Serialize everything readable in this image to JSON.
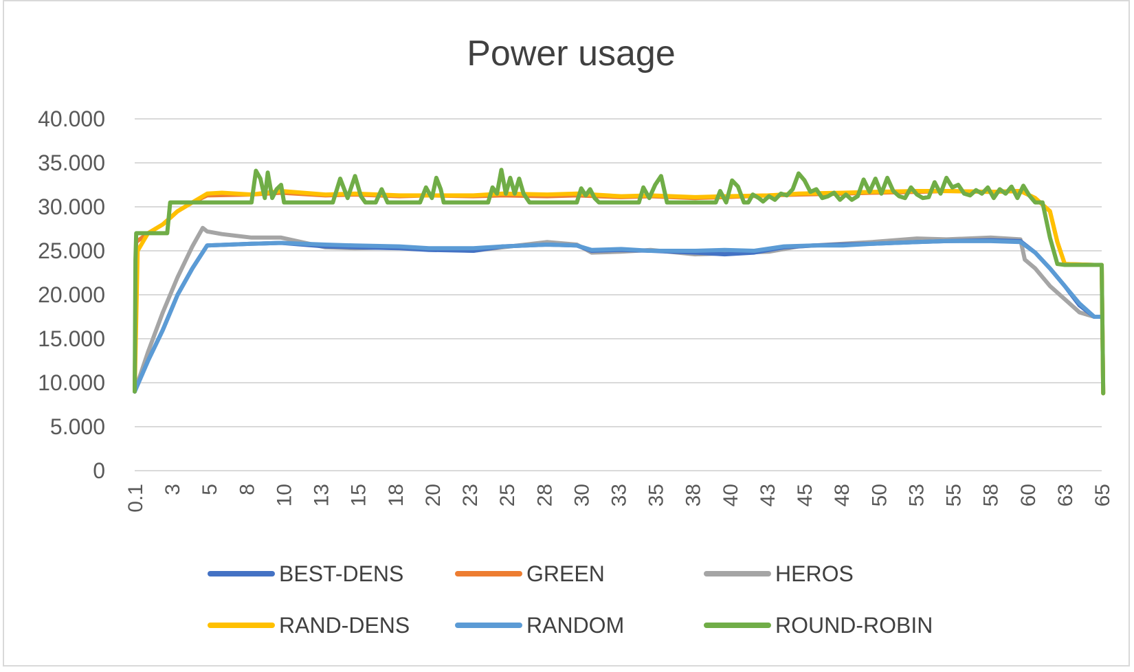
{
  "chart_data": {
    "type": "line",
    "title": "Power usage",
    "xlabel": "",
    "ylabel": "",
    "ylim": [
      0,
      40000
    ],
    "xlim": [
      0.1,
      65.5
    ],
    "y_ticks": [
      "40.000",
      "35.000",
      "30.000",
      "25.000",
      "20.000",
      "15.000",
      "10.000",
      "5.000",
      "0"
    ],
    "y_tick_values": [
      40000,
      35000,
      30000,
      25000,
      20000,
      15000,
      10000,
      5000,
      0
    ],
    "x_ticks": [
      "0.1",
      "3",
      "5",
      "8",
      "10",
      "13",
      "15",
      "18",
      "20",
      "23",
      "25",
      "28",
      "30",
      "33",
      "35",
      "38",
      "40",
      "43",
      "45",
      "48",
      "50",
      "53",
      "55",
      "58",
      "60",
      "63",
      "65"
    ],
    "grid": true,
    "legend_position": "bottom",
    "series": [
      {
        "name": "BEST-DENS",
        "color": "#4472c4",
        "x": [
          0.1,
          1,
          2,
          3,
          4,
          5,
          8,
          10,
          13,
          15,
          18,
          20,
          23,
          25,
          28,
          30,
          31,
          33,
          35,
          38,
          40,
          42,
          44,
          46,
          48,
          50,
          53,
          55,
          58,
          60,
          61,
          62,
          63,
          64,
          65,
          65.5
        ],
        "y": [
          9000,
          12500,
          16000,
          20000,
          23000,
          25600,
          25800,
          25900,
          25500,
          25400,
          25300,
          25100,
          25000,
          25500,
          25700,
          25600,
          25000,
          25100,
          25000,
          24800,
          24600,
          24800,
          25400,
          25600,
          25700,
          25800,
          26000,
          26100,
          26200,
          26100,
          24800,
          23000,
          21000,
          18800,
          17500,
          17500
        ]
      },
      {
        "name": "GREEN",
        "color": "#ed7d31",
        "x": [
          0.1,
          0.2,
          1,
          2,
          3,
          4,
          5,
          8,
          10,
          13,
          15,
          18,
          20,
          23,
          25,
          28,
          30,
          33,
          35,
          38,
          40,
          43,
          45,
          48,
          50,
          53,
          55,
          58,
          60,
          61,
          62,
          62.5,
          63,
          65,
          65.5,
          65.6
        ],
        "y": [
          9000,
          26000,
          27000,
          28000,
          29500,
          30500,
          31300,
          31400,
          31600,
          31300,
          31400,
          31200,
          31300,
          31200,
          31300,
          31200,
          31300,
          31100,
          31200,
          31000,
          31100,
          31300,
          31400,
          31500,
          31600,
          31700,
          31800,
          31700,
          31800,
          31000,
          29500,
          26000,
          23500,
          23400,
          23400,
          8800
        ]
      },
      {
        "name": "HEROS",
        "color": "#a5a5a5",
        "x": [
          0.1,
          1,
          2,
          3,
          4,
          4.7,
          5,
          6,
          8,
          10,
          13,
          15,
          18,
          20,
          23,
          25,
          28,
          30,
          31,
          33,
          35,
          38,
          40,
          43,
          45,
          48,
          50,
          53,
          55,
          58,
          60,
          60.3,
          61,
          62,
          63,
          64,
          65,
          65.5
        ],
        "y": [
          9000,
          13500,
          18000,
          22000,
          25500,
          27600,
          27200,
          26900,
          26500,
          26500,
          25400,
          25300,
          25400,
          25200,
          25000,
          25400,
          26000,
          25700,
          24800,
          24900,
          25100,
          24600,
          24700,
          24900,
          25500,
          25800,
          26000,
          26400,
          26300,
          26500,
          26300,
          24000,
          23000,
          21000,
          19500,
          18000,
          17500,
          17500
        ]
      },
      {
        "name": "RAND-DENS",
        "color": "#ffc000",
        "x": [
          0.1,
          0.3,
          1,
          2,
          3,
          4,
          5,
          6,
          8,
          10,
          13,
          15,
          18,
          20,
          23,
          25,
          28,
          30,
          33,
          35,
          38,
          40,
          43,
          45,
          48,
          50,
          53,
          55,
          58,
          60,
          61,
          62,
          62.5,
          63,
          65,
          65.5,
          65.6
        ],
        "y": [
          9000,
          25000,
          27000,
          28000,
          29500,
          30500,
          31500,
          31600,
          31400,
          31800,
          31400,
          31500,
          31300,
          31300,
          31300,
          31500,
          31400,
          31500,
          31200,
          31300,
          31100,
          31200,
          31300,
          31500,
          31600,
          31700,
          31800,
          31800,
          31700,
          31800,
          31000,
          29500,
          26000,
          23500,
          23400,
          23400,
          8800
        ]
      },
      {
        "name": "RANDOM",
        "color": "#5b9bd5",
        "x": [
          0.1,
          1,
          2,
          3,
          4,
          5,
          8,
          10,
          13,
          15,
          18,
          20,
          23,
          25,
          28,
          30,
          31,
          33,
          35,
          38,
          40,
          42,
          44,
          46,
          48,
          50,
          53,
          55,
          58,
          60,
          61,
          62,
          63,
          64,
          65,
          65.5
        ],
        "y": [
          9000,
          12500,
          16000,
          20000,
          23000,
          25600,
          25800,
          25900,
          25700,
          25600,
          25500,
          25300,
          25300,
          25500,
          25700,
          25600,
          25100,
          25200,
          25000,
          25000,
          25100,
          25000,
          25500,
          25600,
          25600,
          25800,
          26000,
          26100,
          26100,
          26000,
          24800,
          23000,
          21000,
          19000,
          17500,
          17500
        ]
      },
      {
        "name": "ROUND-ROBIN",
        "color": "#70ad47",
        "x": [
          0.1,
          0.15,
          0.2,
          2.3,
          2.5,
          8,
          8.3,
          8.6,
          8.9,
          9.1,
          9.4,
          9.7,
          10,
          10.2,
          13.5,
          14,
          14.5,
          15,
          15.4,
          15.7,
          16.4,
          16.8,
          17.2,
          19.4,
          19.8,
          20.2,
          20.5,
          20.8,
          21,
          21.3,
          24,
          24.3,
          24.6,
          24.9,
          25.2,
          25.5,
          25.8,
          26.1,
          26.4,
          26.8,
          27.2,
          30,
          30.3,
          30.6,
          30.9,
          31.2,
          31.5,
          34.2,
          34.5,
          34.9,
          35.3,
          35.7,
          36.1,
          36.6,
          39.4,
          39.7,
          40.1,
          40.5,
          40.9,
          41.3,
          41.6,
          41.9,
          42.3,
          42.6,
          43,
          43.4,
          43.8,
          44.2,
          44.6,
          45,
          45.4,
          45.8,
          46.2,
          46.6,
          47,
          47.4,
          47.8,
          48.2,
          48.6,
          49,
          49.4,
          49.8,
          50.2,
          50.6,
          51,
          51.4,
          51.8,
          52.2,
          52.6,
          53,
          53.4,
          53.8,
          54.2,
          54.6,
          55,
          55.4,
          55.8,
          56.2,
          56.6,
          57,
          57.4,
          57.8,
          58.2,
          58.6,
          59,
          59.4,
          59.8,
          60.2,
          60.6,
          61,
          61.5,
          62,
          62.5,
          63,
          64,
          65,
          65.5,
          65.6
        ],
        "y": [
          9000,
          24000,
          27000,
          27000,
          30500,
          30500,
          34100,
          33200,
          31000,
          33900,
          31000,
          32000,
          32500,
          30500,
          30500,
          33200,
          31000,
          33500,
          31200,
          30500,
          30500,
          32000,
          30500,
          30500,
          32200,
          31000,
          33300,
          32000,
          30500,
          30500,
          30500,
          32200,
          31500,
          34200,
          31500,
          33300,
          31500,
          33200,
          31500,
          30500,
          30500,
          30500,
          32100,
          31300,
          32000,
          31000,
          30500,
          30500,
          32200,
          31000,
          32500,
          33500,
          30500,
          30500,
          30500,
          31800,
          30500,
          33000,
          32300,
          30500,
          30500,
          31400,
          31000,
          30600,
          31200,
          30800,
          31500,
          31300,
          32000,
          33800,
          33000,
          31700,
          32000,
          31000,
          31200,
          31600,
          30800,
          31400,
          30800,
          31200,
          33100,
          31700,
          33200,
          31500,
          33300,
          31800,
          31200,
          31000,
          32200,
          31400,
          31000,
          31100,
          32800,
          31500,
          33300,
          32200,
          32500,
          31500,
          31300,
          31900,
          31500,
          32200,
          31000,
          32000,
          31500,
          32300,
          31000,
          32400,
          31300,
          30500,
          30500,
          26500,
          23500,
          23400,
          23400,
          23400,
          23400,
          8800
        ]
      }
    ]
  }
}
